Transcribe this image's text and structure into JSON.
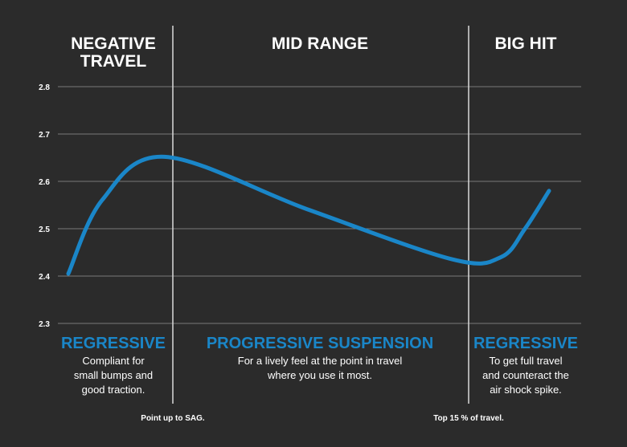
{
  "chart_data": {
    "type": "line",
    "ylim": [
      2.3,
      2.8
    ],
    "yticks": [
      "2.8",
      "2.7",
      "2.6",
      "2.5",
      "2.4",
      "2.3"
    ],
    "grid": true,
    "line_color": "#1a86c8",
    "regions": [
      {
        "title": [
          "NEGATIVE",
          "TRAVEL"
        ],
        "label": "REGRESSIVE",
        "description": [
          "Compliant for",
          "small bumps and",
          "good traction."
        ]
      },
      {
        "title": [
          "MID RANGE"
        ],
        "label": "PROGRESSIVE SUSPENSION",
        "description": [
          "For a lively feel at the point in travel",
          "where you use it most."
        ]
      },
      {
        "title": [
          "BIG HIT"
        ],
        "label": "REGRESSIVE",
        "description": [
          "To get full travel",
          "and counteract the",
          "air shock spike."
        ]
      }
    ],
    "markers": [
      "Point up to SAG.",
      "Top 15 % of travel."
    ],
    "x": [
      0,
      0.07,
      0.2,
      0.5,
      0.8,
      0.9,
      0.95,
      1.0
    ],
    "y": [
      2.405,
      2.56,
      2.652,
      2.54,
      2.435,
      2.44,
      2.5,
      2.58
    ]
  }
}
